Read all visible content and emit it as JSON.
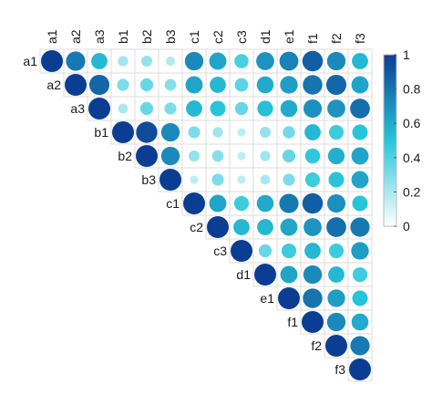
{
  "chart_data": {
    "type": "heatmap",
    "variant": "correlogram-upper-triangle-circles",
    "variables": [
      "a1",
      "a2",
      "a3",
      "b1",
      "b2",
      "b3",
      "c1",
      "c2",
      "c3",
      "d1",
      "e1",
      "f1",
      "f2",
      "f3"
    ],
    "matrix": [
      [
        1.0,
        0.78,
        0.55,
        0.22,
        0.25,
        0.18,
        0.72,
        0.62,
        0.42,
        0.68,
        0.75,
        0.88,
        0.72,
        0.55
      ],
      [
        null,
        1.0,
        0.85,
        0.3,
        0.35,
        0.28,
        0.62,
        0.55,
        0.38,
        0.6,
        0.65,
        0.8,
        0.85,
        0.62
      ],
      [
        null,
        null,
        1.0,
        0.2,
        0.35,
        0.3,
        0.55,
        0.5,
        0.35,
        0.52,
        0.6,
        0.7,
        0.68,
        0.82
      ],
      [
        null,
        null,
        null,
        1.0,
        0.95,
        0.72,
        0.3,
        0.22,
        0.15,
        0.25,
        0.32,
        0.55,
        0.45,
        0.5
      ],
      [
        null,
        null,
        null,
        null,
        1.0,
        0.72,
        0.25,
        0.28,
        0.15,
        0.22,
        0.35,
        0.48,
        0.58,
        0.62
      ],
      [
        null,
        null,
        null,
        null,
        null,
        1.0,
        0.15,
        0.3,
        0.15,
        0.2,
        0.3,
        0.45,
        0.5,
        0.62
      ],
      [
        null,
        null,
        null,
        null,
        null,
        null,
        1.0,
        0.62,
        0.45,
        0.6,
        0.78,
        0.88,
        0.7,
        0.5
      ],
      [
        null,
        null,
        null,
        null,
        null,
        null,
        null,
        1.0,
        0.55,
        0.55,
        0.62,
        0.68,
        0.82,
        0.78
      ],
      [
        null,
        null,
        null,
        null,
        null,
        null,
        null,
        null,
        1.0,
        0.35,
        0.45,
        0.55,
        0.45,
        0.65
      ],
      [
        null,
        null,
        null,
        null,
        null,
        null,
        null,
        null,
        null,
        1.0,
        0.62,
        0.72,
        0.55,
        0.45
      ],
      [
        null,
        null,
        null,
        null,
        null,
        null,
        null,
        null,
        null,
        null,
        1.0,
        0.8,
        0.65,
        0.5
      ],
      [
        null,
        null,
        null,
        null,
        null,
        null,
        null,
        null,
        null,
        null,
        null,
        1.0,
        0.72,
        0.6
      ],
      [
        null,
        null,
        null,
        null,
        null,
        null,
        null,
        null,
        null,
        null,
        null,
        null,
        1.0,
        0.78
      ],
      [
        null,
        null,
        null,
        null,
        null,
        null,
        null,
        null,
        null,
        null,
        null,
        null,
        null,
        1.0
      ]
    ],
    "colorbar": {
      "ticks": [
        {
          "value": 0,
          "label": "0"
        },
        {
          "value": 0.2,
          "label": "0.2"
        },
        {
          "value": 0.4,
          "label": "0.4"
        },
        {
          "value": 0.6,
          "label": "0.6"
        },
        {
          "value": 0.8,
          "label": "0.8"
        },
        {
          "value": 1,
          "label": "1"
        }
      ],
      "range": [
        0,
        1
      ],
      "colors": [
        "#ffffff",
        "#27c5da",
        "#0b3e93"
      ]
    },
    "title": "",
    "legend_position": "right",
    "grid": true
  }
}
